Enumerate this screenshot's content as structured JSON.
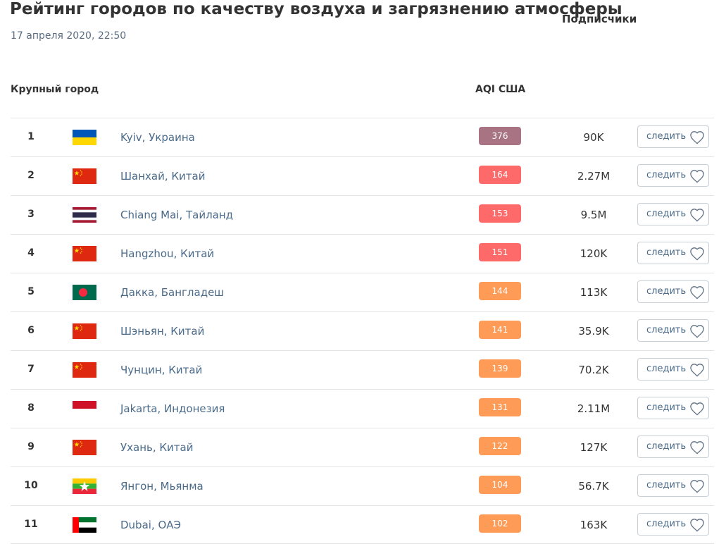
{
  "page": {
    "title": "Рейтинг городов по качеству воздуха и загрязнению атмосферы",
    "date": "17 апреля 2020, 22:50"
  },
  "table": {
    "headers": {
      "city": "Крупный город",
      "aqi": "AQI США",
      "subscribers": "Подписчики"
    },
    "follow_label": "следить",
    "rows": [
      {
        "rank": "1",
        "city": "Kyiv, Украина",
        "flag": "ukraine",
        "aqi": "376",
        "aqi_color": "#a87383",
        "subscribers": "90K"
      },
      {
        "rank": "2",
        "city": "Шанхай, Китай",
        "flag": "china",
        "aqi": "164",
        "aqi_color": "#fe6a69",
        "subscribers": "2.27M"
      },
      {
        "rank": "3",
        "city": "Chiang Mai, Тайланд",
        "flag": "thailand",
        "aqi": "153",
        "aqi_color": "#fe6a69",
        "subscribers": "9.5M"
      },
      {
        "rank": "4",
        "city": "Hangzhou, Китай",
        "flag": "china",
        "aqi": "151",
        "aqi_color": "#fe6a69",
        "subscribers": "120K"
      },
      {
        "rank": "5",
        "city": "Дакка, Бангладеш",
        "flag": "bangladesh",
        "aqi": "144",
        "aqi_color": "#fe9b57",
        "subscribers": "113K"
      },
      {
        "rank": "6",
        "city": "Шэньян, Китай",
        "flag": "china",
        "aqi": "141",
        "aqi_color": "#fe9b57",
        "subscribers": "35.9K"
      },
      {
        "rank": "7",
        "city": "Чунцин, Китай",
        "flag": "china",
        "aqi": "139",
        "aqi_color": "#fe9b57",
        "subscribers": "70.2K"
      },
      {
        "rank": "8",
        "city": "Jakarta, Индонезия",
        "flag": "indonesia",
        "aqi": "131",
        "aqi_color": "#fe9b57",
        "subscribers": "2.11M"
      },
      {
        "rank": "9",
        "city": "Ухань, Китай",
        "flag": "china",
        "aqi": "122",
        "aqi_color": "#fe9b57",
        "subscribers": "127K"
      },
      {
        "rank": "10",
        "city": "Янгон, Мьянма",
        "flag": "myanmar",
        "aqi": "104",
        "aqi_color": "#fe9b57",
        "subscribers": "56.7K"
      },
      {
        "rank": "11",
        "city": "Dubai, ОАЭ",
        "flag": "uae",
        "aqi": "102",
        "aqi_color": "#fe9b57",
        "subscribers": "163K"
      }
    ]
  }
}
